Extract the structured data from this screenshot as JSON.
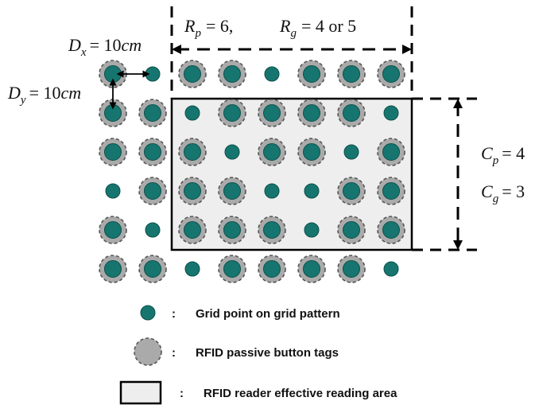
{
  "colors": {
    "grid_point": "#16766f",
    "grid_point_stroke": "#0c4f4a",
    "tag_fill": "#aaaaaa",
    "tag_ring": "#555555",
    "area_fill": "#eeeeee",
    "line": "#000000"
  },
  "labels": {
    "rp_var": "R",
    "rp_sub": "p",
    "rp_eq": "= 6,",
    "rg_var": "R",
    "rg_sub": "g",
    "rg_eq": "= 4 or 5",
    "dx_var": "D",
    "dx_sub": "x",
    "dx_eq": "= 10",
    "dx_unit": "cm",
    "dy_var": "D",
    "dy_sub": "y",
    "dy_eq": "= 10",
    "dy_unit": "cm",
    "cp_var": "C",
    "cp_sub": "p",
    "cp_eq": "= 4",
    "cg_var": "C",
    "cg_sub": "g",
    "cg_eq": "= 3"
  },
  "grid": {
    "rows": [
      "TGTTGTTT",
      "TTGTTTTG",
      "TTTGTTGT",
      "GTTTGGTT",
      "TGTTTGTT",
      "TTGTTTTG"
    ]
  },
  "legend": {
    "grid_point_colon": ":",
    "grid_point_text": "Grid point on grid pattern",
    "tag_colon": ":",
    "tag_text": "RFID passive button tags",
    "area_colon": ":",
    "area_text": "RFID reader effective reading area"
  }
}
